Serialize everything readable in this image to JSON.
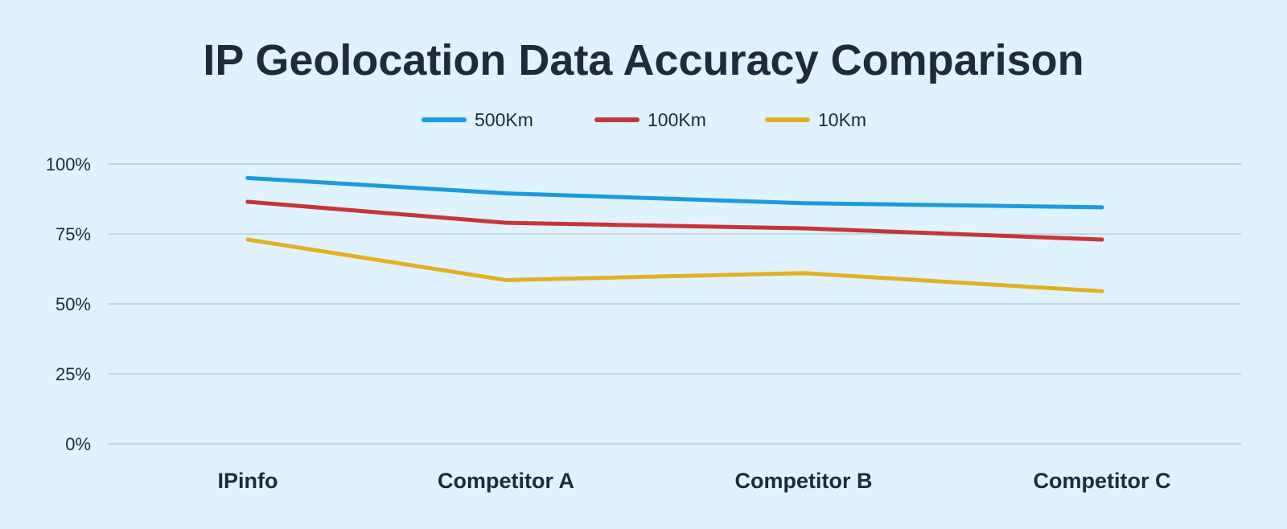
{
  "chart_data": {
    "type": "line",
    "title": "IP Geolocation Data Accuracy Comparison",
    "xlabel": "",
    "ylabel": "",
    "categories": [
      "IPinfo",
      "Competitor A",
      "Competitor B",
      "Competitor C"
    ],
    "ylim": [
      0,
      100
    ],
    "yticks": [
      0,
      25,
      50,
      75,
      100
    ],
    "ytick_labels": [
      "0%",
      "25%",
      "50%",
      "75%",
      "100%"
    ],
    "grid": true,
    "legend_position": "top-center",
    "series": [
      {
        "name": "500Km",
        "color": "#1b9be0",
        "values": [
          95,
          89.5,
          86,
          84.5
        ]
      },
      {
        "name": "100Km",
        "color": "#c8343a",
        "values": [
          86.5,
          79,
          77,
          73
        ]
      },
      {
        "name": "10Km",
        "color": "#e2b023",
        "values": [
          73,
          58.5,
          61,
          54.5
        ]
      }
    ]
  }
}
